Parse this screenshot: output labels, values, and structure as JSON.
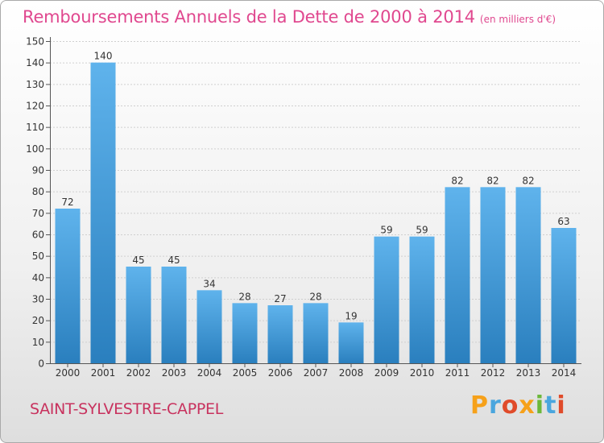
{
  "chart_data": {
    "type": "bar",
    "title": "Remboursements Annuels de la Dette de 2000 à 2014",
    "subtitle": "(en milliers d'€)",
    "categories": [
      "2000",
      "2001",
      "2002",
      "2003",
      "2004",
      "2005",
      "2006",
      "2007",
      "2008",
      "2009",
      "2010",
      "2011",
      "2012",
      "2013",
      "2014"
    ],
    "values": [
      72,
      140,
      45,
      45,
      34,
      28,
      27,
      28,
      19,
      59,
      59,
      82,
      82,
      82,
      63
    ],
    "ylim": [
      0,
      150
    ],
    "ytick_step": 10,
    "grid": true,
    "xlabel": "",
    "ylabel": "",
    "colors": {
      "bar_light": "#5fb3ec",
      "bar_dark": "#2a7fbe",
      "grid": "#cfcfcf",
      "title": "#e0488f"
    }
  },
  "footer": {
    "town": "SAINT-SYLVESTRE-CAPPEL",
    "brand_letters": [
      "P",
      "r",
      "o",
      "x",
      "i",
      "t",
      "i"
    ],
    "brand_colors": [
      "#f6a11a",
      "#4aa6de",
      "#e04b2a",
      "#f6a11a",
      "#6cb83a",
      "#4aa6de",
      "#e04b2a"
    ]
  }
}
